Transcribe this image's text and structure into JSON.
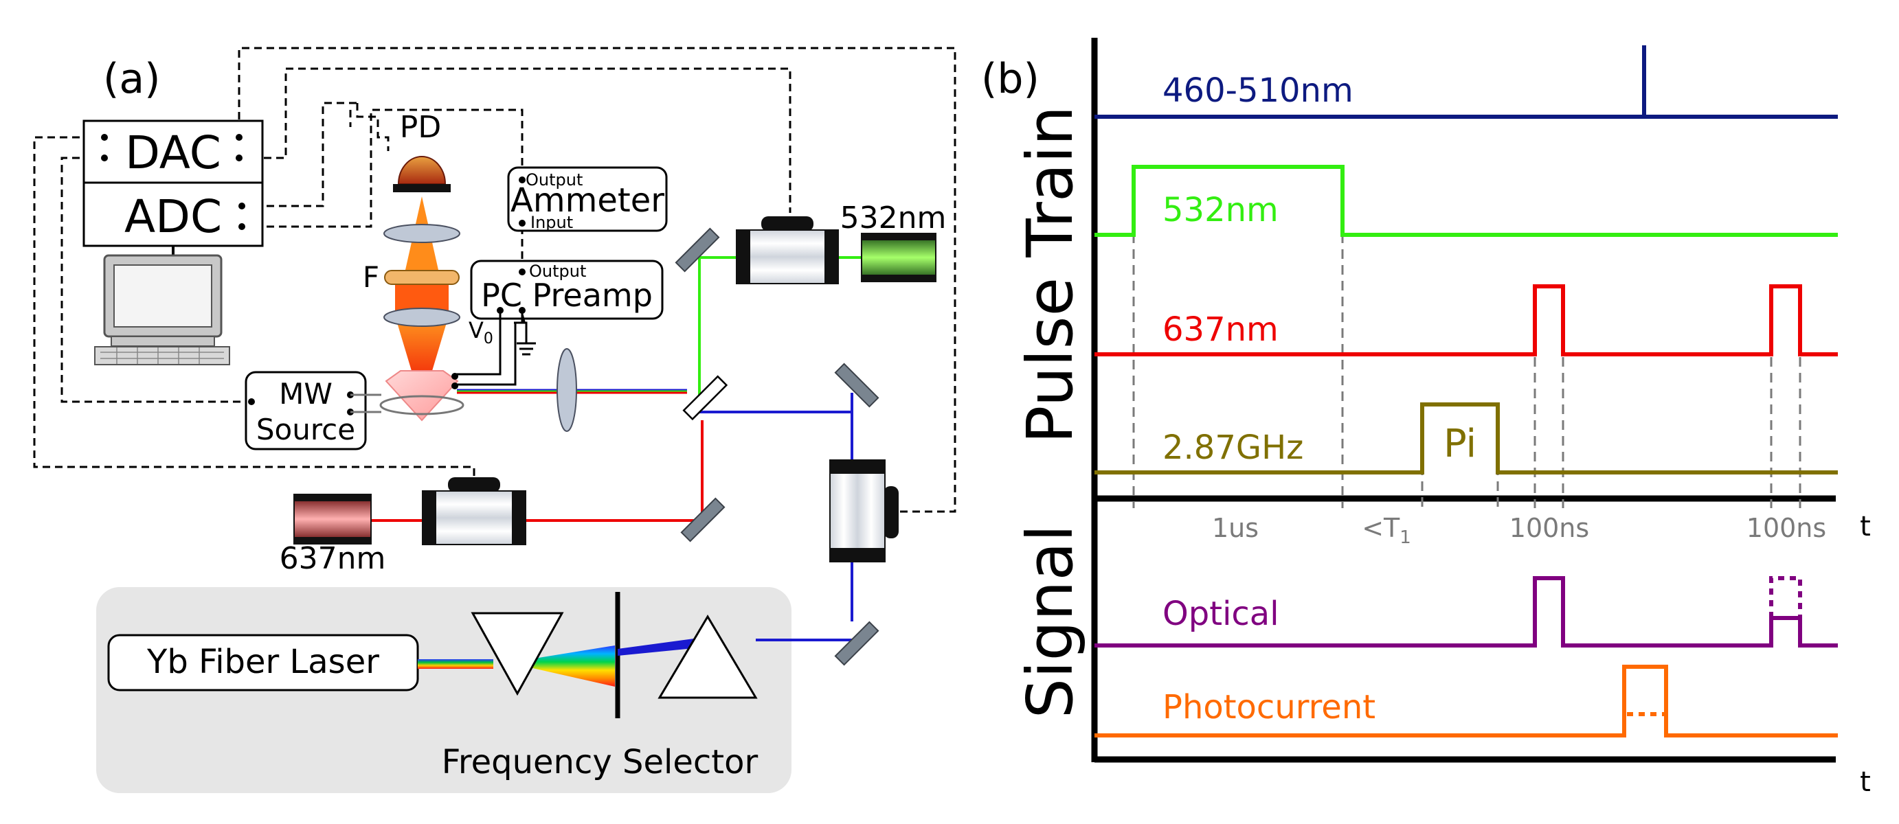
{
  "panel_a": {
    "label": "(a)",
    "dac": "DAC",
    "adc": "ADC",
    "pd": "PD",
    "filter": "F",
    "ammeter": "Ammeter",
    "ammeter_output": "Output",
    "ammeter_input": "Input",
    "preamp": "PC Preamp",
    "preamp_output": "Output",
    "v0": "V",
    "v0_sub": "0",
    "mw_line1": "MW",
    "mw_line2": "Source",
    "laser_532": "532nm",
    "laser_637": "637nm",
    "yb_laser": "Yb Fiber Laser",
    "freq_selector": "Frequency Selector"
  },
  "panel_b": {
    "label": "(b)",
    "pulse_train_label": "Pulse Train",
    "signal_label": "Signal",
    "traces": {
      "t460": "460-510nm",
      "t532": "532nm",
      "t637": "637nm",
      "tmw": "2.87GHz",
      "pi": "Pi",
      "optical": "Optical",
      "photocurrent": "Photocurrent"
    },
    "timing": {
      "t1": "1us",
      "t2": "<T",
      "t2_sub": "1",
      "t3": "100ns",
      "t4": "100ns"
    },
    "axis_t": "t",
    "colors": {
      "t460": "#0d1a80",
      "t532": "#33ee11",
      "t637": "#ee0000",
      "tmw": "#807000",
      "optical": "#800080",
      "photocurrent": "#ff6a00"
    }
  }
}
